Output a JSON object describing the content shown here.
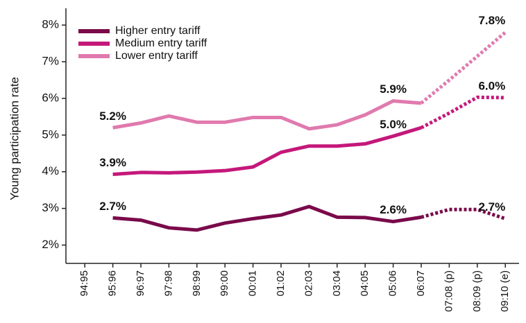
{
  "chart_data": {
    "type": "line",
    "y_label": "Young participation rate",
    "categories": [
      "94:95",
      "95:96",
      "96:97",
      "97:98",
      "98:99",
      "99:00",
      "00:01",
      "01:02",
      "02:03",
      "03:04",
      "04:05",
      "05:06",
      "06:07",
      "07:08 (p)",
      "08:09 (p)",
      "09:10 (e)"
    ],
    "series": [
      {
        "name": "Higher entry tariff",
        "color": "#7a0a4a",
        "values": [
          null,
          2.74,
          2.68,
          2.47,
          2.41,
          2.6,
          2.72,
          2.82,
          3.05,
          2.76,
          2.75,
          2.64,
          2.76,
          2.97,
          2.97,
          2.72
        ],
        "value_labels": [
          null,
          "2.7%",
          null,
          null,
          null,
          null,
          null,
          null,
          null,
          null,
          null,
          "2.6%",
          null,
          null,
          null,
          "2.7%"
        ]
      },
      {
        "name": "Medium entry tariff",
        "color": "#c4187a",
        "values": [
          null,
          3.93,
          3.98,
          3.97,
          3.99,
          4.03,
          4.13,
          4.53,
          4.7,
          4.7,
          4.76,
          4.97,
          5.2,
          5.6,
          6.03,
          6.02
        ],
        "value_labels": [
          null,
          "3.9%",
          null,
          null,
          null,
          null,
          null,
          null,
          null,
          null,
          null,
          "5.0%",
          null,
          null,
          null,
          "6.0%"
        ]
      },
      {
        "name": "Lower entry tariff",
        "color": "#e07aae",
        "values": [
          null,
          5.2,
          5.33,
          5.52,
          5.35,
          5.35,
          5.48,
          5.48,
          5.17,
          5.28,
          5.55,
          5.93,
          5.87,
          6.5,
          7.15,
          7.8
        ],
        "value_labels": [
          null,
          "5.2%",
          null,
          null,
          null,
          null,
          null,
          null,
          null,
          null,
          null,
          "5.9%",
          null,
          null,
          null,
          "7.8%"
        ]
      }
    ],
    "dashed_from": 12,
    "ylim": [
      1.5,
      8.4
    ],
    "yticks": [
      {
        "value": 2,
        "label": "2%"
      },
      {
        "value": 3,
        "label": "3%"
      },
      {
        "value": 4,
        "label": "4%"
      },
      {
        "value": 5,
        "label": "5%"
      },
      {
        "value": 6,
        "label": "6%"
      },
      {
        "value": 7,
        "label": "7%"
      },
      {
        "value": 8,
        "label": "8%"
      }
    ],
    "legend": "top-left"
  }
}
